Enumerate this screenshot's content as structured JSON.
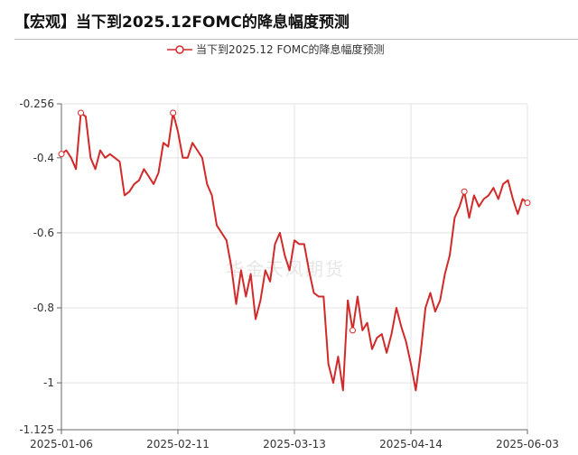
{
  "header": {
    "title": "【宏观】当下到2025.12FOMC的降息幅度预测"
  },
  "watermark": "华金天风期货",
  "colors": {
    "series": "#d12a2a",
    "grid": "#e3e3e3",
    "axis": "#666666"
  },
  "chart_data": {
    "type": "line",
    "title": "",
    "xlabel": "",
    "ylabel": "",
    "ylim": [
      -1.125,
      -0.256
    ],
    "yticks": [
      -0.256,
      -0.4,
      -0.6,
      -0.8,
      -1,
      -1.125
    ],
    "ytick_labels": [
      "-0.256",
      "-0.4",
      "-0.6",
      "-0.8",
      "-1",
      "-1.125"
    ],
    "xtick_labels": [
      "2025-01-06",
      "2025-02-11",
      "2025-03-13",
      "2025-04-14",
      "2025-06-03"
    ],
    "grid": true,
    "legend_position": "top",
    "series": [
      {
        "name": "当下到2025.12 FOMC的降息幅度预测",
        "marker": "open-circle",
        "values": [
          -0.39,
          -0.38,
          -0.4,
          -0.43,
          -0.28,
          -0.29,
          -0.4,
          -0.43,
          -0.38,
          -0.4,
          -0.39,
          -0.4,
          -0.41,
          -0.5,
          -0.49,
          -0.47,
          -0.46,
          -0.43,
          -0.45,
          -0.47,
          -0.44,
          -0.36,
          -0.37,
          -0.28,
          -0.33,
          -0.4,
          -0.4,
          -0.36,
          -0.38,
          -0.4,
          -0.47,
          -0.5,
          -0.58,
          -0.6,
          -0.62,
          -0.69,
          -0.79,
          -0.7,
          -0.77,
          -0.71,
          -0.83,
          -0.78,
          -0.7,
          -0.73,
          -0.63,
          -0.6,
          -0.66,
          -0.7,
          -0.62,
          -0.63,
          -0.63,
          -0.7,
          -0.76,
          -0.77,
          -0.77,
          -0.95,
          -1.0,
          -0.93,
          -1.02,
          -0.78,
          -0.86,
          -0.77,
          -0.86,
          -0.84,
          -0.91,
          -0.88,
          -0.87,
          -0.92,
          -0.87,
          -0.8,
          -0.85,
          -0.89,
          -0.95,
          -1.02,
          -0.92,
          -0.8,
          -0.76,
          -0.81,
          -0.78,
          -0.71,
          -0.66,
          -0.56,
          -0.53,
          -0.49,
          -0.56,
          -0.5,
          -0.53,
          -0.51,
          -0.5,
          -0.48,
          -0.51,
          -0.47,
          -0.46,
          -0.51,
          -0.55,
          -0.51,
          -0.52
        ],
        "markers_at": [
          0,
          4,
          23,
          60,
          83,
          96
        ]
      }
    ]
  }
}
